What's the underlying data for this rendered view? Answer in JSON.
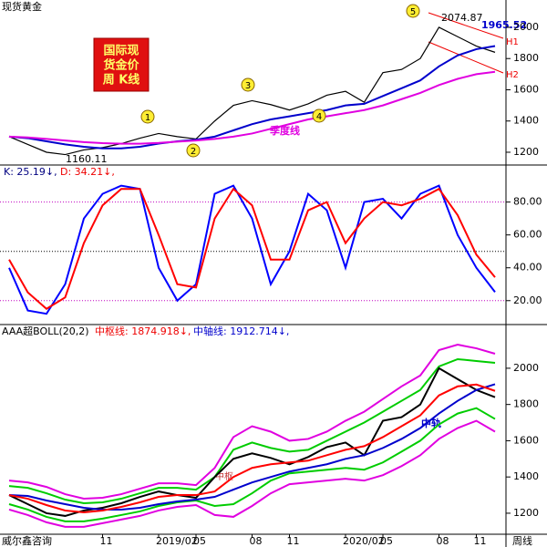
{
  "source": "威尔鑫咨询",
  "period": "周线",
  "chart_data": [
    {
      "type": "line",
      "title": "现货黄金",
      "categories": [
        null,
        null,
        null,
        null,
        null,
        null,
        null,
        null,
        null,
        null,
        null,
        null,
        null,
        null,
        null,
        null,
        null,
        null,
        null,
        null,
        null,
        null,
        null,
        null,
        null,
        null,
        null
      ],
      "ylim": [
        1124,
        2175
      ],
      "yticks": [
        1200,
        1400,
        1600,
        1800,
        2000
      ],
      "series": [
        {
          "color": "#000000",
          "values": [
            1300,
            1250,
            1200,
            1185,
            1215,
            1230,
            1255,
            1290,
            1320,
            1300,
            1285,
            1400,
            1500,
            1530,
            1505,
            1470,
            1510,
            1565,
            1590,
            1520,
            1710,
            1730,
            1800,
            2000,
            1940,
            1880,
            1840
          ]
        },
        {
          "color": "#0000cc",
          "values": [
            1300,
            1290,
            1270,
            1250,
            1235,
            1225,
            1225,
            1235,
            1255,
            1270,
            1280,
            1300,
            1340,
            1380,
            1410,
            1430,
            1450,
            1470,
            1500,
            1510,
            1560,
            1610,
            1660,
            1750,
            1820,
            1860,
            1880
          ]
        },
        {
          "name": "季度线",
          "color": "#e000e0",
          "values": [
            1300,
            1295,
            1285,
            1275,
            1265,
            1258,
            1255,
            1255,
            1260,
            1268,
            1275,
            1285,
            1300,
            1320,
            1350,
            1380,
            1410,
            1430,
            1450,
            1470,
            1500,
            1540,
            1580,
            1630,
            1670,
            1700,
            1715
          ]
        }
      ],
      "high_label": "2074.87",
      "low_label": "1160.11",
      "ma_label": "1965.52",
      "h1": "H1",
      "h2": "H2",
      "badge": [
        "国际现",
        "货金价",
        "周 K线"
      ],
      "waves": [
        "1",
        "2",
        "3",
        "4",
        "5"
      ]
    },
    {
      "type": "line",
      "k_text": "K: 25.19↓,",
      "d_text": "D: 34.21↓,",
      "categories": [
        null,
        null,
        null,
        null,
        null,
        null,
        null,
        null,
        null,
        null,
        null,
        null,
        null,
        null,
        null,
        null,
        null,
        null,
        null,
        null,
        null,
        null,
        null,
        null,
        null,
        null,
        null
      ],
      "ylim": [
        6,
        102
      ],
      "yticks": [
        {
          "value": 20,
          "label": "20.00"
        },
        {
          "value": 40,
          "label": "40.00"
        },
        {
          "value": 60,
          "label": "60.00"
        },
        {
          "value": 80,
          "label": "80.00"
        }
      ],
      "hlines": [
        20,
        50,
        80
      ],
      "series": [
        {
          "name": "K",
          "color": "#0000ff",
          "values": [
            40,
            14,
            12,
            30,
            70,
            85,
            90,
            88,
            40,
            20,
            30,
            85,
            90,
            70,
            30,
            50,
            85,
            75,
            40,
            80,
            82,
            70,
            85,
            90,
            60,
            40,
            25.19
          ]
        },
        {
          "name": "D",
          "color": "#ff0000",
          "values": [
            45,
            25,
            15,
            22,
            55,
            78,
            88,
            88,
            60,
            30,
            28,
            70,
            88,
            78,
            45,
            45,
            75,
            80,
            55,
            70,
            80,
            78,
            82,
            88,
            72,
            48,
            34.21
          ]
        }
      ]
    },
    {
      "type": "line",
      "title": "AAA超BOLL(20,2)",
      "mid_text": "中枢线: 1874.918↓,",
      "axis_text": "中轴线: 1912.714↓,",
      "axis_label": "中轨",
      "mid_label": "中枢",
      "categories": [
        null,
        null,
        null,
        null,
        null,
        "11",
        null,
        null,
        "2019/02",
        null,
        "05",
        null,
        null,
        "08",
        null,
        "11",
        null,
        null,
        "2020/02",
        null,
        "05",
        null,
        null,
        "08",
        null,
        "11",
        null
      ],
      "ylim": [
        1089,
        2236
      ],
      "yticks": [
        1200,
        1400,
        1600,
        1800,
        2000
      ],
      "series": [
        {
          "color": "#e000e0",
          "values": [
            1380,
            1370,
            1345,
            1305,
            1280,
            1285,
            1305,
            1335,
            1365,
            1365,
            1355,
            1450,
            1620,
            1680,
            1650,
            1600,
            1610,
            1650,
            1710,
            1760,
            1830,
            1900,
            1960,
            2100,
            2130,
            2110,
            2080
          ]
        },
        {
          "color": "#00cc00",
          "values": [
            1350,
            1340,
            1310,
            1275,
            1255,
            1260,
            1280,
            1310,
            1340,
            1340,
            1330,
            1400,
            1550,
            1590,
            1560,
            1540,
            1550,
            1600,
            1650,
            1700,
            1760,
            1820,
            1880,
            2010,
            2050,
            2040,
            2030
          ]
        },
        {
          "color": "#00cc00",
          "values": [
            1250,
            1220,
            1180,
            1155,
            1155,
            1170,
            1190,
            1210,
            1240,
            1260,
            1270,
            1240,
            1250,
            1310,
            1380,
            1420,
            1430,
            1440,
            1450,
            1440,
            1480,
            1540,
            1600,
            1690,
            1750,
            1780,
            1720
          ]
        },
        {
          "color": "#e000e0",
          "values": [
            1220,
            1190,
            1150,
            1125,
            1125,
            1145,
            1165,
            1185,
            1215,
            1235,
            1245,
            1190,
            1180,
            1240,
            1310,
            1360,
            1370,
            1380,
            1390,
            1380,
            1410,
            1460,
            1520,
            1610,
            1670,
            1710,
            1650
          ]
        },
        {
          "color": "#000000",
          "values": [
            1300,
            1250,
            1200,
            1185,
            1215,
            1230,
            1255,
            1290,
            1320,
            1300,
            1285,
            1400,
            1500,
            1530,
            1505,
            1470,
            1510,
            1565,
            1590,
            1520,
            1710,
            1730,
            1800,
            2000,
            1940,
            1880,
            1840
          ]
        },
        {
          "color": "#0000cc",
          "values": [
            1300,
            1295,
            1270,
            1250,
            1230,
            1220,
            1220,
            1230,
            1250,
            1265,
            1275,
            1290,
            1330,
            1370,
            1400,
            1430,
            1450,
            1470,
            1500,
            1520,
            1560,
            1610,
            1670,
            1750,
            1820,
            1880,
            1912
          ]
        },
        {
          "color": "#ff0000",
          "values": [
            1300,
            1280,
            1245,
            1215,
            1205,
            1215,
            1235,
            1260,
            1290,
            1300,
            1300,
            1320,
            1400,
            1450,
            1470,
            1480,
            1490,
            1520,
            1550,
            1570,
            1620,
            1680,
            1740,
            1850,
            1900,
            1910,
            1875
          ]
        }
      ]
    }
  ]
}
